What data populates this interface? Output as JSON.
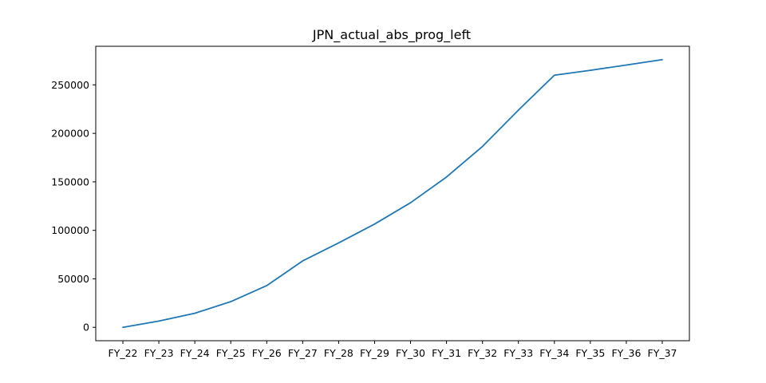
{
  "chart_data": {
    "type": "line",
    "title": "JPN_actual_abs_prog_left",
    "xlabel": "",
    "ylabel": "",
    "categories": [
      "FY_22",
      "FY_23",
      "FY_24",
      "FY_25",
      "FY_26",
      "FY_27",
      "FY_28",
      "FY_29",
      "FY_30",
      "FY_31",
      "FY_32",
      "FY_33",
      "FY_34",
      "FY_35",
      "FY_36",
      "FY_37"
    ],
    "series": [
      {
        "values": [
          0,
          6500,
          14500,
          26500,
          43000,
          68500,
          87000,
          106500,
          128500,
          155000,
          186500,
          224000,
          260000,
          265000,
          270500,
          276000
        ]
      }
    ],
    "ylim": [
      -13800,
      289800
    ],
    "yticks": [
      0,
      50000,
      100000,
      150000,
      200000,
      250000
    ],
    "ytick_labels": [
      "0",
      "50000",
      "100000",
      "150000",
      "200000",
      "250000"
    ],
    "grid": false,
    "legend": "none",
    "line_color": "#1f77b4"
  }
}
